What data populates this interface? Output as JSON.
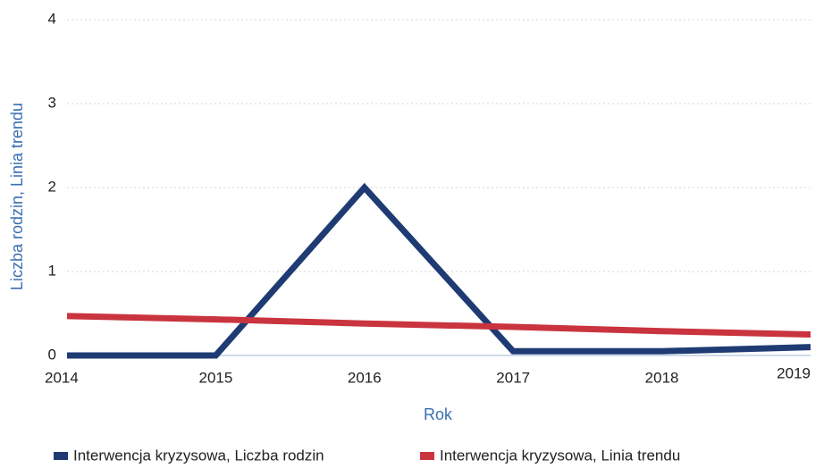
{
  "chart_data": {
    "type": "line",
    "x": [
      2014,
      2015,
      2016,
      2017,
      2018,
      2019
    ],
    "series": [
      {
        "name": "Interwencja kryzysowa, Liczba rodzin",
        "color": "#1f3b73",
        "values": [
          0,
          0,
          2,
          0.05,
          0.05,
          0.1
        ]
      },
      {
        "name": "Interwencja kryzysowa, Linia trendu",
        "color": "#c9343e",
        "values": [
          0.47,
          0.43,
          0.38,
          0.34,
          0.29,
          0.25
        ]
      }
    ],
    "xlabel": "Rok",
    "ylabel": "Liczba rodzin, Linia trendu",
    "xlim": [
      2014,
      2019
    ],
    "xticks": [
      2014,
      2015,
      2016,
      2017,
      2018,
      2019
    ],
    "ylim": [
      0,
      4
    ],
    "yticks": [
      0,
      1,
      2,
      3,
      4
    ],
    "grid": true,
    "legend": "bottom"
  }
}
